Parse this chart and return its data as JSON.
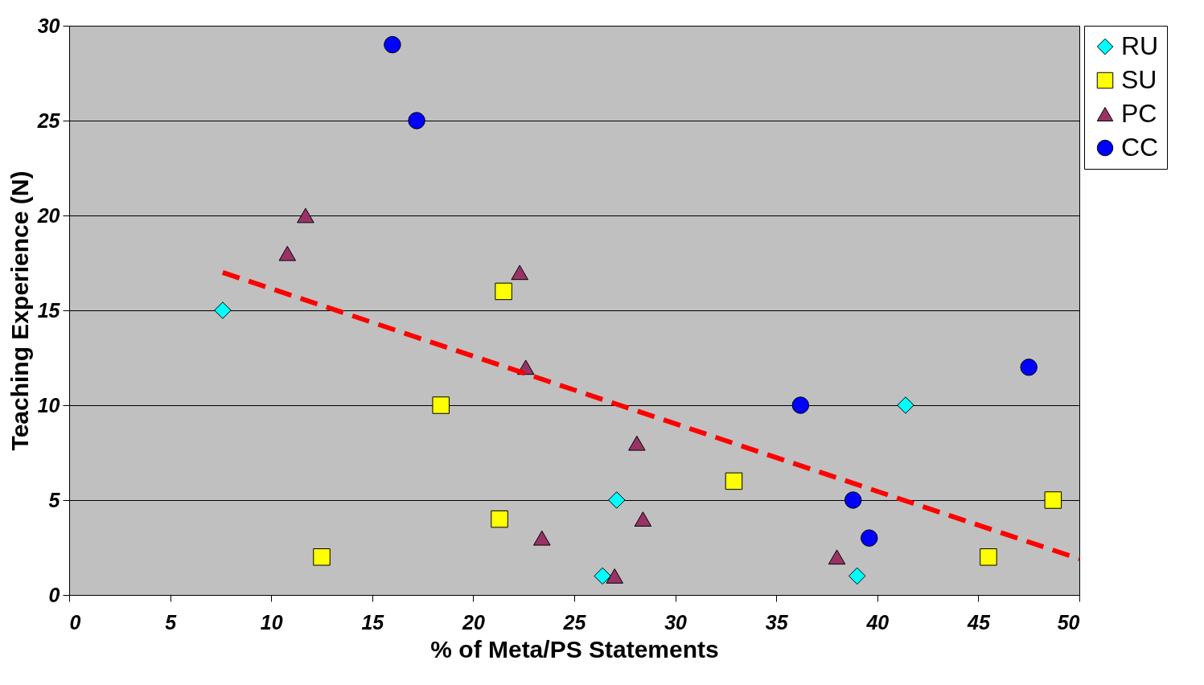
{
  "chart_data": {
    "type": "scatter",
    "xlabel": "% of Meta/PS Statements",
    "ylabel": "Teaching Experience (N)",
    "xlim": [
      0,
      50
    ],
    "xticks": [
      0,
      5,
      10,
      15,
      20,
      25,
      30,
      35,
      40,
      45,
      50
    ],
    "ylim": [
      0,
      30
    ],
    "yticks": [
      0,
      5,
      10,
      15,
      20,
      25,
      30
    ],
    "grid": "y",
    "legend": "right",
    "series": [
      {
        "name": "RU",
        "color": "#00ffff",
        "marker": "diamond",
        "x": [
          7.6,
          27.1,
          26.4,
          39.0,
          41.4
        ],
        "values": [
          15,
          5,
          1,
          1,
          10
        ]
      },
      {
        "name": "SU",
        "color": "#ffff00",
        "marker": "square",
        "x": [
          12.5,
          18.4,
          21.5,
          21.3,
          32.9,
          45.5,
          48.7
        ],
        "values": [
          2,
          10,
          16,
          4,
          6,
          2,
          5
        ]
      },
      {
        "name": "PC",
        "color": "#993366",
        "marker": "triangle",
        "x": [
          10.8,
          11.7,
          22.3,
          22.6,
          28.1,
          28.4,
          23.4,
          27.0,
          38.0
        ],
        "values": [
          18,
          20,
          17,
          12,
          8,
          4,
          3,
          1,
          2
        ]
      },
      {
        "name": "CC",
        "color": "#0000ff",
        "marker": "circle",
        "x": [
          16.0,
          17.2,
          36.2,
          38.8,
          39.6,
          47.5
        ],
        "values": [
          29,
          25,
          10,
          5,
          3,
          12
        ]
      },
      {
        "type": "line",
        "color": "#ff0000",
        "line_style": "dashed",
        "marker": "none",
        "x": [
          7.6,
          50
        ],
        "values": [
          17.0,
          1.9
        ]
      }
    ]
  }
}
